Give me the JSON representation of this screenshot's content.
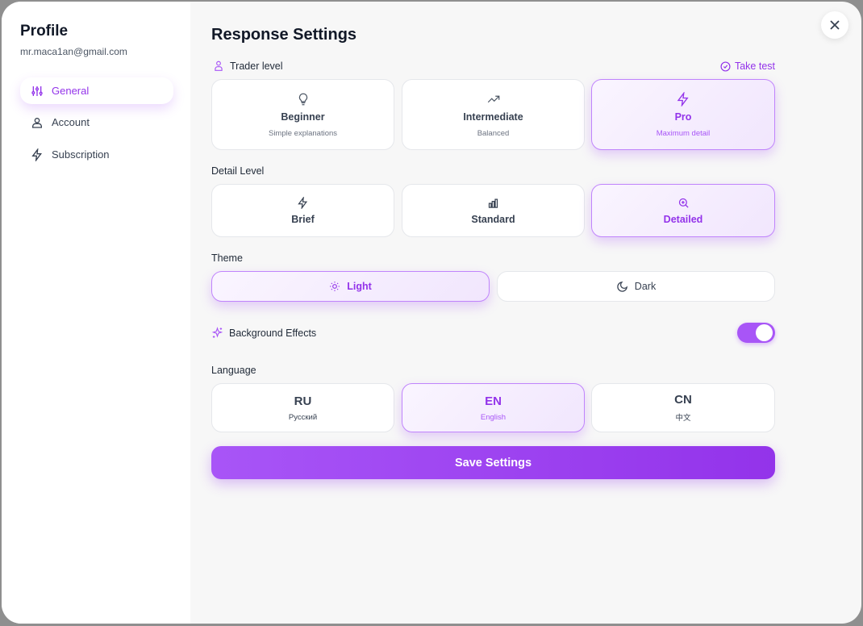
{
  "sidebar": {
    "title": "Profile",
    "email": "mr.maca1an@gmail.com",
    "items": [
      {
        "label": "General",
        "icon": "sliders-icon"
      },
      {
        "label": "Account",
        "icon": "user-icon"
      },
      {
        "label": "Subscription",
        "icon": "lightning-icon"
      }
    ]
  },
  "main": {
    "title": "Response Settings",
    "trader_level": {
      "label": "Trader level",
      "take_test": "Take test",
      "options": [
        {
          "title": "Beginner",
          "subtitle": "Simple explanations"
        },
        {
          "title": "Intermediate",
          "subtitle": "Balanced"
        },
        {
          "title": "Pro",
          "subtitle": "Maximum detail"
        }
      ],
      "selected": "Pro"
    },
    "detail_level": {
      "label": "Detail Level",
      "options": [
        "Brief",
        "Standard",
        "Detailed"
      ],
      "selected": "Detailed"
    },
    "theme": {
      "label": "Theme",
      "options": [
        "Light",
        "Dark"
      ],
      "selected": "Light"
    },
    "background_effects": {
      "label": "Background Effects",
      "enabled": true
    },
    "language": {
      "label": "Language",
      "options": [
        {
          "code": "RU",
          "name": "Русский"
        },
        {
          "code": "EN",
          "name": "English"
        },
        {
          "code": "CN",
          "name": "中文"
        }
      ],
      "selected": "EN"
    },
    "save_label": "Save Settings"
  },
  "colors": {
    "accent": "#9333ea"
  }
}
